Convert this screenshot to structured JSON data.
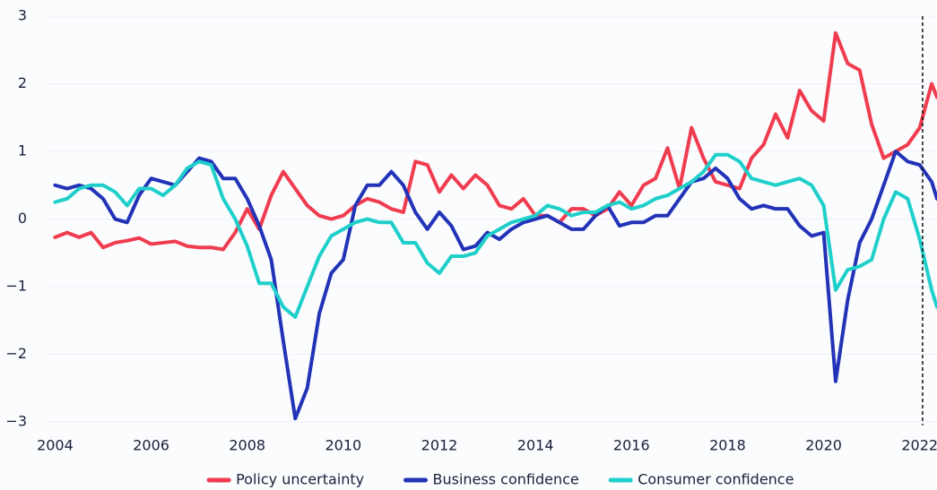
{
  "chart_data": {
    "type": "line",
    "x": [
      2004,
      2004.25,
      2004.5,
      2004.75,
      2005,
      2005.25,
      2005.5,
      2005.75,
      2006,
      2006.25,
      2006.5,
      2006.75,
      2007,
      2007.25,
      2007.5,
      2007.75,
      2008,
      2008.25,
      2008.5,
      2008.75,
      2009,
      2009.25,
      2009.5,
      2009.75,
      2010,
      2010.25,
      2010.5,
      2010.75,
      2011,
      2011.25,
      2011.5,
      2011.75,
      2012,
      2012.25,
      2012.5,
      2012.75,
      2013,
      2013.25,
      2013.5,
      2013.75,
      2014,
      2014.25,
      2014.5,
      2014.75,
      2015,
      2015.25,
      2015.5,
      2015.75,
      2016,
      2016.25,
      2016.5,
      2016.75,
      2017,
      2017.25,
      2017.5,
      2017.75,
      2018,
      2018.25,
      2018.5,
      2018.75,
      2019,
      2019.25,
      2019.5,
      2019.75,
      2020,
      2020.25,
      2020.5,
      2020.75,
      2021,
      2021.25,
      2021.5,
      2021.75,
      2022,
      2022.25,
      2022.36
    ],
    "series": [
      {
        "name": "Policy uncertainty",
        "color": "#f03c4f",
        "values": [
          -0.27,
          -0.2,
          -0.27,
          -0.2,
          -0.42,
          -0.35,
          -0.32,
          -0.28,
          -0.37,
          -0.35,
          -0.33,
          -0.4,
          -0.42,
          -0.42,
          -0.45,
          -0.2,
          0.15,
          -0.15,
          0.35,
          0.7,
          0.45,
          0.2,
          0.05,
          0.0,
          0.05,
          0.2,
          0.3,
          0.25,
          0.15,
          0.1,
          0.85,
          0.8,
          0.4,
          0.65,
          0.45,
          0.65,
          0.5,
          0.2,
          0.15,
          0.3,
          0.05,
          0.05,
          -0.05,
          0.15,
          0.15,
          0.05,
          0.15,
          0.4,
          0.2,
          0.5,
          0.6,
          1.05,
          0.45,
          1.35,
          0.9,
          0.55,
          0.5,
          0.45,
          0.9,
          1.1,
          1.55,
          1.2,
          1.9,
          1.6,
          1.45,
          2.75,
          2.3,
          2.2,
          1.4,
          0.9,
          1.0,
          1.1,
          1.35,
          2.0,
          1.8
        ]
      },
      {
        "name": "Business confidence",
        "color": "#2233b8",
        "values": [
          0.5,
          0.45,
          0.5,
          0.45,
          0.3,
          0.0,
          -0.05,
          0.35,
          0.6,
          0.55,
          0.5,
          0.7,
          0.9,
          0.85,
          0.6,
          0.6,
          0.3,
          -0.1,
          -0.6,
          -1.8,
          -2.95,
          -2.5,
          -1.4,
          -0.8,
          -0.6,
          0.2,
          0.5,
          0.5,
          0.7,
          0.5,
          0.1,
          -0.15,
          0.1,
          -0.1,
          -0.45,
          -0.4,
          -0.2,
          -0.3,
          -0.15,
          -0.05,
          0.0,
          0.05,
          -0.05,
          -0.15,
          -0.15,
          0.05,
          0.2,
          -0.1,
          -0.05,
          -0.05,
          0.05,
          0.05,
          0.3,
          0.55,
          0.6,
          0.75,
          0.6,
          0.3,
          0.15,
          0.2,
          0.15,
          0.15,
          -0.1,
          -0.25,
          -0.2,
          -2.4,
          -1.2,
          -0.35,
          0.0,
          0.5,
          1.0,
          0.85,
          0.8,
          0.55,
          0.3
        ]
      },
      {
        "name": "Consumer confidence",
        "color": "#1fcfca",
        "values": [
          0.25,
          0.3,
          0.45,
          0.5,
          0.5,
          0.4,
          0.2,
          0.45,
          0.45,
          0.35,
          0.5,
          0.75,
          0.85,
          0.8,
          0.3,
          0.0,
          -0.4,
          -0.95,
          -0.95,
          -1.3,
          -1.45,
          -1.0,
          -0.55,
          -0.25,
          -0.15,
          -0.05,
          0.0,
          -0.05,
          -0.05,
          -0.35,
          -0.35,
          -0.65,
          -0.8,
          -0.55,
          -0.55,
          -0.5,
          -0.25,
          -0.15,
          -0.05,
          0.0,
          0.05,
          0.2,
          0.15,
          0.05,
          0.1,
          0.1,
          0.2,
          0.25,
          0.15,
          0.2,
          0.3,
          0.35,
          0.45,
          0.55,
          0.7,
          0.95,
          0.95,
          0.85,
          0.6,
          0.55,
          0.5,
          0.55,
          0.6,
          0.5,
          0.2,
          -1.05,
          -0.75,
          -0.7,
          -0.6,
          0.0,
          0.4,
          0.3,
          -0.3,
          -1.05,
          -1.3
        ]
      }
    ],
    "xlim": [
      2003.6,
      2022.36
    ],
    "xticks": [
      2004,
      2006,
      2008,
      2010,
      2012,
      2014,
      2016,
      2018,
      2020,
      2022
    ],
    "ylim": [
      -3.05,
      3.1
    ],
    "yticks": [
      {
        "value": -3,
        "label": "−3"
      },
      {
        "value": -2,
        "label": "−2"
      },
      {
        "value": -1,
        "label": "−1"
      },
      0,
      1,
      2,
      3
    ],
    "vline": 2022.06,
    "grid": true,
    "legend": "bottom"
  }
}
